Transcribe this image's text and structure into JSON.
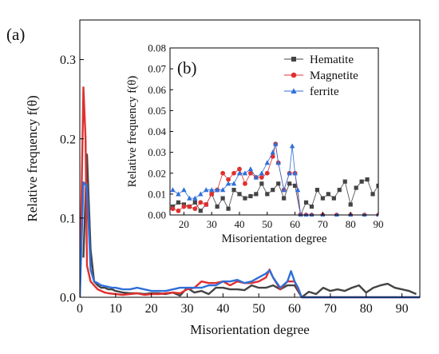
{
  "chart_data": [
    {
      "panel_label": "(a)",
      "type": "line",
      "xlabel": "Misorientation degree",
      "ylabel": "Relative frequency f(θ)",
      "xlim": [
        0,
        95
      ],
      "ylim": [
        0,
        0.35
      ],
      "xticks": [
        0,
        10,
        20,
        30,
        40,
        50,
        60,
        70,
        80,
        90
      ],
      "xtick_labels": [
        "0",
        "10",
        "20",
        "30",
        "40",
        "50",
        "60",
        "70",
        "80",
        "90"
      ],
      "yticks": [
        0.0,
        0.1,
        0.2,
        0.3
      ],
      "ytick_labels": [
        "0.0",
        "0.1",
        "0.2",
        "0.3"
      ],
      "grid": false,
      "series": [
        {
          "name": "Hematite",
          "color": "#444444",
          "x": [
            1,
            2,
            3,
            4,
            5,
            6,
            7,
            8,
            9,
            10,
            12,
            14,
            16,
            18,
            20,
            22,
            24,
            26,
            28,
            30,
            32,
            34,
            36,
            38,
            40,
            42,
            44,
            46,
            48,
            50,
            52,
            54,
            56,
            58,
            60,
            62,
            64,
            66,
            68,
            70,
            72,
            74,
            76,
            78,
            80,
            82,
            84,
            86,
            88,
            90,
            92,
            94
          ],
          "y": [
            0.05,
            0.18,
            0.06,
            0.02,
            0.015,
            0.012,
            0.012,
            0.01,
            0.01,
            0.008,
            0.006,
            0.005,
            0.005,
            0.004,
            0.005,
            0.005,
            0.004,
            0.006,
            0.002,
            0.012,
            0.006,
            0.008,
            0.004,
            0.012,
            0.012,
            0.01,
            0.01,
            0.009,
            0.015,
            0.012,
            0.012,
            0.015,
            0.01,
            0.015,
            0.015,
            0.0,
            0.007,
            0.004,
            0.012,
            0.008,
            0.01,
            0.008,
            0.012,
            0.015,
            0.006,
            0.012,
            0.015,
            0.017,
            0.012,
            0.01,
            0.008,
            0.004
          ]
        },
        {
          "name": "Magnetite",
          "color": "#e03030",
          "x": [
            0,
            1,
            1.6,
            2,
            3,
            4,
            5,
            6,
            7,
            8,
            10,
            12,
            14,
            16,
            18,
            20,
            22,
            24,
            26,
            28,
            30,
            32,
            34,
            36,
            38,
            40,
            42,
            44,
            46,
            48,
            50,
            52,
            53,
            54,
            56,
            58,
            60,
            62,
            64,
            70,
            80,
            90,
            95
          ],
          "y": [
            0.0,
            0.265,
            0.2,
            0.04,
            0.02,
            0.015,
            0.01,
            0.008,
            0.006,
            0.005,
            0.004,
            0.003,
            0.004,
            0.005,
            0.003,
            0.004,
            0.004,
            0.005,
            0.006,
            0.005,
            0.01,
            0.012,
            0.02,
            0.018,
            0.018,
            0.02,
            0.015,
            0.02,
            0.018,
            0.018,
            0.02,
            0.025,
            0.035,
            0.025,
            0.01,
            0.02,
            0.02,
            0.0,
            0.0,
            0.0,
            0.0,
            0.0,
            0.0
          ]
        },
        {
          "name": "ferrite",
          "color": "#2f6fd8",
          "x": [
            0,
            1,
            2,
            3,
            4,
            5,
            6,
            7,
            8,
            9,
            10,
            12,
            14,
            16,
            18,
            20,
            22,
            24,
            26,
            28,
            30,
            32,
            34,
            36,
            38,
            40,
            42,
            44,
            46,
            48,
            50,
            52,
            53,
            54,
            56,
            58,
            59,
            60,
            61,
            62,
            64,
            70,
            80,
            90,
            95
          ],
          "y": [
            0.0,
            0.145,
            0.14,
            0.035,
            0.02,
            0.018,
            0.015,
            0.014,
            0.013,
            0.012,
            0.012,
            0.01,
            0.01,
            0.012,
            0.01,
            0.008,
            0.008,
            0.008,
            0.01,
            0.012,
            0.012,
            0.012,
            0.012,
            0.015,
            0.015,
            0.02,
            0.02,
            0.022,
            0.018,
            0.02,
            0.025,
            0.03,
            0.034,
            0.025,
            0.012,
            0.02,
            0.033,
            0.02,
            0.012,
            0.0,
            0.0,
            0.0,
            0.0,
            0.0,
            0.0
          ]
        }
      ]
    },
    {
      "panel_label": "(b)",
      "type": "line",
      "xlabel": "Misorientation degree",
      "ylabel": "Relative frequency f(θ)",
      "xlim": [
        15,
        90
      ],
      "ylim": [
        0,
        0.08
      ],
      "xticks": [
        20,
        30,
        40,
        50,
        60,
        70,
        80,
        90
      ],
      "xtick_labels": [
        "20",
        "30",
        "40",
        "50",
        "60",
        "70",
        "80",
        "90"
      ],
      "yticks": [
        0.0,
        0.01,
        0.02,
        0.03,
        0.04,
        0.05,
        0.06,
        0.07,
        0.08
      ],
      "ytick_labels": [
        "0.00",
        "0.01",
        "0.02",
        "0.03",
        "0.04",
        "0.05",
        "0.06",
        "0.07",
        "0.08"
      ],
      "grid": false,
      "legend_position": "top-right",
      "series": [
        {
          "name": "Hematite",
          "color": "#444444",
          "marker": "square",
          "x": [
            16,
            18,
            20,
            22,
            24,
            26,
            28,
            30,
            32,
            34,
            36,
            38,
            40,
            42,
            44,
            46,
            48,
            50,
            52,
            54,
            56,
            58,
            60,
            62,
            64,
            66,
            68,
            70,
            72,
            74,
            76,
            78,
            80,
            82,
            84,
            86,
            88,
            90
          ],
          "y": [
            0.004,
            0.006,
            0.005,
            0.004,
            0.006,
            0.002,
            0.005,
            0.01,
            0.004,
            0.008,
            0.003,
            0.012,
            0.01,
            0.008,
            0.009,
            0.01,
            0.015,
            0.01,
            0.012,
            0.015,
            0.008,
            0.015,
            0.014,
            0.0,
            0.006,
            0.004,
            0.012,
            0.008,
            0.01,
            0.008,
            0.012,
            0.016,
            0.005,
            0.013,
            0.016,
            0.017,
            0.01,
            0.014
          ]
        },
        {
          "name": "Magnetite",
          "color": "#e03030",
          "marker": "circle",
          "x": [
            16,
            18,
            20,
            22,
            24,
            26,
            28,
            30,
            32,
            34,
            36,
            38,
            40,
            42,
            44,
            46,
            48,
            50,
            52,
            53,
            54,
            56,
            58,
            60,
            62,
            64,
            66,
            70,
            75,
            80,
            85,
            90
          ],
          "y": [
            0.003,
            0.002,
            0.004,
            0.004,
            0.003,
            0.006,
            0.005,
            0.01,
            0.012,
            0.02,
            0.017,
            0.02,
            0.022,
            0.015,
            0.02,
            0.018,
            0.018,
            0.02,
            0.028,
            0.034,
            0.025,
            0.012,
            0.02,
            0.02,
            0.0,
            0.0,
            0.0,
            0.0,
            0.0,
            0.0,
            0.0,
            0.0
          ]
        },
        {
          "name": "ferrite",
          "color": "#2f6fd8",
          "marker": "triangle",
          "x": [
            16,
            18,
            20,
            22,
            24,
            26,
            28,
            30,
            32,
            34,
            36,
            38,
            40,
            42,
            44,
            46,
            48,
            50,
            52,
            53,
            54,
            56,
            58,
            59,
            60,
            61,
            62,
            64,
            66,
            70,
            75,
            80,
            85,
            90
          ],
          "y": [
            0.012,
            0.01,
            0.012,
            0.008,
            0.008,
            0.01,
            0.012,
            0.012,
            0.012,
            0.012,
            0.015,
            0.015,
            0.02,
            0.02,
            0.022,
            0.018,
            0.02,
            0.025,
            0.03,
            0.034,
            0.025,
            0.012,
            0.02,
            0.033,
            0.02,
            0.012,
            0.0,
            0.0,
            0.0,
            0.0,
            0.0,
            0.0,
            0.0,
            0.0
          ]
        }
      ]
    }
  ]
}
